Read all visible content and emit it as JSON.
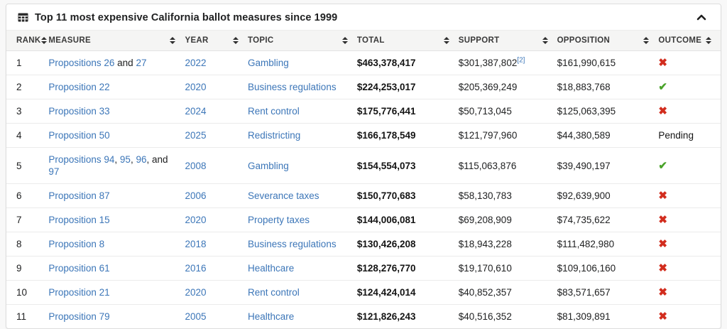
{
  "card": {
    "title": "Top 11 most expensive California ballot measures since 1999",
    "title_icon": "table-icon",
    "collapse_icon": "chevron-up-icon"
  },
  "colors": {
    "link": "#3c76b8",
    "fail": "#d22d1e",
    "pass": "#4aa32a"
  },
  "outcome_glyphs": {
    "fail": "✖",
    "pass": "✔",
    "pending": "Pending"
  },
  "table": {
    "columns": [
      {
        "key": "rank",
        "label": "RANK",
        "width": "5.9%"
      },
      {
        "key": "measure",
        "label": "MEASURE",
        "width": "19.1%"
      },
      {
        "key": "year",
        "label": "YEAR",
        "width": "8.8%"
      },
      {
        "key": "topic",
        "label": "TOPIC",
        "width": "15.3%"
      },
      {
        "key": "total",
        "label": "TOTAL",
        "width": "14.2%"
      },
      {
        "key": "support",
        "label": "SUPPORT",
        "width": "13.8%"
      },
      {
        "key": "opposition",
        "label": "OPPOSITION",
        "width": "14.2%"
      },
      {
        "key": "outcome",
        "label": "OUTCOME",
        "width": "8.7%"
      }
    ],
    "rows": [
      {
        "rank": "1",
        "measure_parts": [
          {
            "text": "Propositions 26",
            "link": true
          },
          {
            "text": " and ",
            "link": false
          },
          {
            "text": "27",
            "link": true
          }
        ],
        "year": "2022",
        "topic": "Gambling",
        "total": "$463,378,417",
        "support": "$301,387,802",
        "support_footnote": "[2]",
        "opposition": "$161,990,615",
        "outcome": "fail"
      },
      {
        "rank": "2",
        "measure_parts": [
          {
            "text": "Proposition 22",
            "link": true
          }
        ],
        "year": "2020",
        "topic": "Business regulations",
        "total": "$224,253,017",
        "support": "$205,369,249",
        "support_footnote": "",
        "opposition": "$18,883,768",
        "outcome": "pass"
      },
      {
        "rank": "3",
        "measure_parts": [
          {
            "text": "Proposition 33",
            "link": true
          }
        ],
        "year": "2024",
        "topic": "Rent control",
        "total": "$175,776,441",
        "support": "$50,713,045",
        "support_footnote": "",
        "opposition": "$125,063,395",
        "outcome": "fail"
      },
      {
        "rank": "4",
        "measure_parts": [
          {
            "text": "Proposition 50",
            "link": true
          }
        ],
        "year": "2025",
        "topic": "Redistricting",
        "total": "$166,178,549",
        "support": "$121,797,960",
        "support_footnote": "",
        "opposition": "$44,380,589",
        "outcome": "pending"
      },
      {
        "rank": "5",
        "measure_parts": [
          {
            "text": "Propositions 94",
            "link": true
          },
          {
            "text": ", ",
            "link": false
          },
          {
            "text": "95",
            "link": true
          },
          {
            "text": ", ",
            "link": false
          },
          {
            "text": "96",
            "link": true
          },
          {
            "text": ", and ",
            "link": false
          },
          {
            "text": "97",
            "link": true
          }
        ],
        "year": "2008",
        "topic": "Gambling",
        "total": "$154,554,073",
        "support": "$115,063,876",
        "support_footnote": "",
        "opposition": "$39,490,197",
        "outcome": "pass"
      },
      {
        "rank": "6",
        "measure_parts": [
          {
            "text": "Proposition 87",
            "link": true
          }
        ],
        "year": "2006",
        "topic": "Severance taxes",
        "total": "$150,770,683",
        "support": "$58,130,783",
        "support_footnote": "",
        "opposition": "$92,639,900",
        "outcome": "fail"
      },
      {
        "rank": "7",
        "measure_parts": [
          {
            "text": "Proposition 15",
            "link": true
          }
        ],
        "year": "2020",
        "topic": "Property taxes",
        "total": "$144,006,081",
        "support": "$69,208,909",
        "support_footnote": "",
        "opposition": "$74,735,622",
        "outcome": "fail"
      },
      {
        "rank": "8",
        "measure_parts": [
          {
            "text": "Proposition 8",
            "link": true
          }
        ],
        "year": "2018",
        "topic": "Business regulations",
        "total": "$130,426,208",
        "support": "$18,943,228",
        "support_footnote": "",
        "opposition": "$111,482,980",
        "outcome": "fail"
      },
      {
        "rank": "9",
        "measure_parts": [
          {
            "text": "Proposition 61",
            "link": true
          }
        ],
        "year": "2016",
        "topic": "Healthcare",
        "total": "$128,276,770",
        "support": "$19,170,610",
        "support_footnote": "",
        "opposition": "$109,106,160",
        "outcome": "fail"
      },
      {
        "rank": "10",
        "measure_parts": [
          {
            "text": "Proposition 21",
            "link": true
          }
        ],
        "year": "2020",
        "topic": "Rent control",
        "total": "$124,424,014",
        "support": "$40,852,357",
        "support_footnote": "",
        "opposition": "$83,571,657",
        "outcome": "fail"
      },
      {
        "rank": "11",
        "measure_parts": [
          {
            "text": "Proposition 79",
            "link": true
          }
        ],
        "year": "2005",
        "topic": "Healthcare",
        "total": "$121,826,243",
        "support": "$40,516,352",
        "support_footnote": "",
        "opposition": "$81,309,891",
        "outcome": "fail"
      }
    ]
  }
}
